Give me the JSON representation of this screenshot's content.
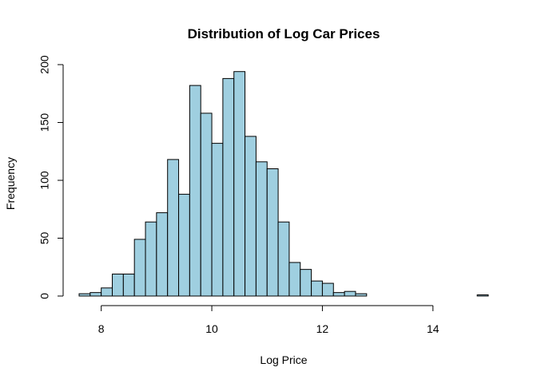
{
  "chart_data": {
    "type": "bar",
    "title": "Distribution of Log Car Prices",
    "xlabel": "Log Price",
    "ylabel": "Frequency",
    "xlim": [
      7.6,
      15.0
    ],
    "ylim": [
      0,
      200
    ],
    "xticks": [
      "8",
      "10",
      "12",
      "14"
    ],
    "yticks": [
      "0",
      "50",
      "100",
      "150",
      "200"
    ],
    "bin_width": 0.2,
    "bin_start": 7.6,
    "values": [
      2,
      3,
      7,
      19,
      19,
      49,
      64,
      72,
      118,
      88,
      182,
      158,
      132,
      188,
      194,
      138,
      116,
      110,
      64,
      29,
      23,
      13,
      11,
      3,
      4,
      2,
      0,
      0,
      0,
      0,
      0,
      0,
      0,
      0,
      0,
      0,
      1
    ],
    "bar_color": "#9fcfe0",
    "grid": false,
    "legend": "none"
  }
}
